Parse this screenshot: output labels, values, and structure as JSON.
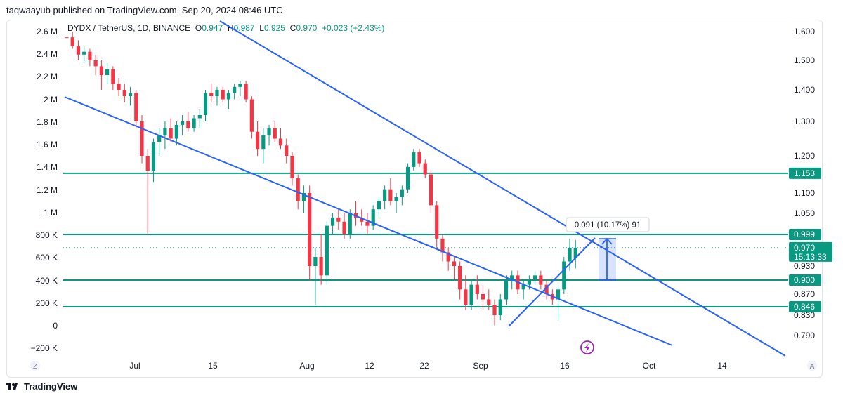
{
  "publisher": "taqwaayub published on TradingView.com, Sep 20, 2024 08:46 UTC",
  "legend": {
    "symbol": "DYDX / TetherUS, 1D, BINANCE",
    "o_label": "O",
    "o": "0.947",
    "h_label": "H",
    "h": "0.987",
    "l_label": "L",
    "l": "0.925",
    "c_label": "C",
    "c": "0.970",
    "change": "+0.023 (+2.43%)"
  },
  "measure_label": "0.091 (10.17%) 91",
  "brand": "TradingView",
  "corner_left": "Z",
  "corner_right": "A",
  "colors": {
    "up": "#089981",
    "down": "#f23645",
    "trend": "#2962ff",
    "level": "#089981"
  },
  "chart_data": {
    "type": "candlestick",
    "x_ticks": [
      "Jul",
      "15",
      "Aug",
      "12",
      "22",
      "Sep",
      "16",
      "Oct",
      "14"
    ],
    "volume_axis_ticks": [
      "2.6 M",
      "2.4 M",
      "2.2 M",
      "2 M",
      "1.8 M",
      "1.6 M",
      "1.4 M",
      "1.2 M",
      "1 M",
      "800 K",
      "600 K",
      "400 K",
      "200 K",
      "0",
      "−200 K"
    ],
    "price_axis_ticks": [
      "1.600",
      "1.500",
      "1.400",
      "1.300",
      "1.200",
      "1.100",
      "1.050",
      "0.930",
      "0.870",
      "0.830",
      "0.790"
    ],
    "horizontal_levels": [
      {
        "label": "1.153",
        "value": 1.153
      },
      {
        "label": "0.999",
        "value": 0.999
      },
      {
        "label": "0.900",
        "value": 0.9
      },
      {
        "label": "0.846",
        "value": 0.846
      }
    ],
    "last_price": {
      "label": "0.970",
      "timer": "15:13:33",
      "value": 0.97
    },
    "candles": [
      [
        1.62,
        1.64,
        1.56,
        1.58
      ],
      [
        1.58,
        1.6,
        1.54,
        1.55
      ],
      [
        1.55,
        1.57,
        1.5,
        1.52
      ],
      [
        1.52,
        1.55,
        1.49,
        1.53
      ],
      [
        1.53,
        1.54,
        1.48,
        1.5
      ],
      [
        1.5,
        1.52,
        1.45,
        1.48
      ],
      [
        1.48,
        1.5,
        1.4,
        1.45
      ],
      [
        1.45,
        1.49,
        1.42,
        1.47
      ],
      [
        1.47,
        1.48,
        1.4,
        1.42
      ],
      [
        1.42,
        1.44,
        1.38,
        1.4
      ],
      [
        1.4,
        1.42,
        1.36,
        1.38
      ],
      [
        1.38,
        1.41,
        1.35,
        1.39
      ],
      [
        1.39,
        1.4,
        1.28,
        1.3
      ],
      [
        1.3,
        1.32,
        1.18,
        1.2
      ],
      [
        1.2,
        1.22,
        1.0,
        1.16
      ],
      [
        1.16,
        1.25,
        1.13,
        1.24
      ],
      [
        1.24,
        1.28,
        1.2,
        1.26
      ],
      [
        1.26,
        1.3,
        1.22,
        1.28
      ],
      [
        1.28,
        1.31,
        1.24,
        1.25
      ],
      [
        1.25,
        1.3,
        1.23,
        1.29
      ],
      [
        1.29,
        1.32,
        1.26,
        1.3
      ],
      [
        1.3,
        1.33,
        1.27,
        1.28
      ],
      [
        1.28,
        1.32,
        1.27,
        1.31
      ],
      [
        1.31,
        1.34,
        1.28,
        1.32
      ],
      [
        1.32,
        1.4,
        1.3,
        1.39
      ],
      [
        1.39,
        1.42,
        1.36,
        1.38
      ],
      [
        1.38,
        1.41,
        1.35,
        1.4
      ],
      [
        1.4,
        1.41,
        1.36,
        1.37
      ],
      [
        1.37,
        1.4,
        1.34,
        1.39
      ],
      [
        1.39,
        1.42,
        1.37,
        1.41
      ],
      [
        1.41,
        1.43,
        1.38,
        1.42
      ],
      [
        1.42,
        1.43,
        1.36,
        1.37
      ],
      [
        1.37,
        1.38,
        1.25,
        1.27
      ],
      [
        1.27,
        1.3,
        1.2,
        1.22
      ],
      [
        1.22,
        1.28,
        1.18,
        1.26
      ],
      [
        1.26,
        1.29,
        1.23,
        1.28
      ],
      [
        1.28,
        1.3,
        1.24,
        1.25
      ],
      [
        1.25,
        1.28,
        1.22,
        1.23
      ],
      [
        1.23,
        1.25,
        1.18,
        1.2
      ],
      [
        1.2,
        1.21,
        1.12,
        1.14
      ],
      [
        1.14,
        1.15,
        1.06,
        1.08
      ],
      [
        1.08,
        1.12,
        1.05,
        1.1
      ],
      [
        1.1,
        1.12,
        0.9,
        0.93
      ],
      [
        0.93,
        0.97,
        0.85,
        0.95
      ],
      [
        0.95,
        1.0,
        0.89,
        0.91
      ],
      [
        0.91,
        1.03,
        0.89,
        1.02
      ],
      [
        1.02,
        1.05,
        1.0,
        1.04
      ],
      [
        1.04,
        1.06,
        1.01,
        1.03
      ],
      [
        1.03,
        1.05,
        0.99,
        1.0
      ],
      [
        1.0,
        1.06,
        0.99,
        1.05
      ],
      [
        1.05,
        1.08,
        1.02,
        1.04
      ],
      [
        1.04,
        1.06,
        1.02,
        1.03
      ],
      [
        1.03,
        1.05,
        1.0,
        1.02
      ],
      [
        1.02,
        1.07,
        1.01,
        1.06
      ],
      [
        1.06,
        1.09,
        1.04,
        1.08
      ],
      [
        1.08,
        1.12,
        1.06,
        1.11
      ],
      [
        1.11,
        1.14,
        1.07,
        1.08
      ],
      [
        1.08,
        1.1,
        1.05,
        1.09
      ],
      [
        1.09,
        1.12,
        1.07,
        1.11
      ],
      [
        1.11,
        1.18,
        1.1,
        1.17
      ],
      [
        1.17,
        1.22,
        1.16,
        1.21
      ],
      [
        1.21,
        1.22,
        1.17,
        1.18
      ],
      [
        1.18,
        1.19,
        1.14,
        1.15
      ],
      [
        1.15,
        1.16,
        1.05,
        1.07
      ],
      [
        1.07,
        1.08,
        0.97,
        0.99
      ],
      [
        0.99,
        1.0,
        0.94,
        0.96
      ],
      [
        0.96,
        0.97,
        0.92,
        0.94
      ],
      [
        0.94,
        0.95,
        0.9,
        0.93
      ],
      [
        0.93,
        0.94,
        0.86,
        0.88
      ],
      [
        0.88,
        0.91,
        0.84,
        0.85
      ],
      [
        0.85,
        0.9,
        0.84,
        0.89
      ],
      [
        0.89,
        0.91,
        0.86,
        0.87
      ],
      [
        0.87,
        0.89,
        0.84,
        0.86
      ],
      [
        0.86,
        0.88,
        0.84,
        0.85
      ],
      [
        0.85,
        0.86,
        0.81,
        0.83
      ],
      [
        0.83,
        0.87,
        0.82,
        0.86
      ],
      [
        0.86,
        0.91,
        0.85,
        0.9
      ],
      [
        0.9,
        0.92,
        0.88,
        0.91
      ],
      [
        0.91,
        0.92,
        0.87,
        0.88
      ],
      [
        0.88,
        0.9,
        0.86,
        0.89
      ],
      [
        0.89,
        0.91,
        0.88,
        0.9
      ],
      [
        0.9,
        0.92,
        0.89,
        0.91
      ],
      [
        0.91,
        0.92,
        0.88,
        0.89
      ],
      [
        0.89,
        0.9,
        0.86,
        0.87
      ],
      [
        0.87,
        0.88,
        0.85,
        0.86
      ],
      [
        0.86,
        0.89,
        0.82,
        0.88
      ],
      [
        0.88,
        0.95,
        0.87,
        0.94
      ],
      [
        0.94,
        0.99,
        0.92,
        0.97
      ],
      [
        0.947,
        0.987,
        0.925,
        0.97
      ]
    ]
  }
}
